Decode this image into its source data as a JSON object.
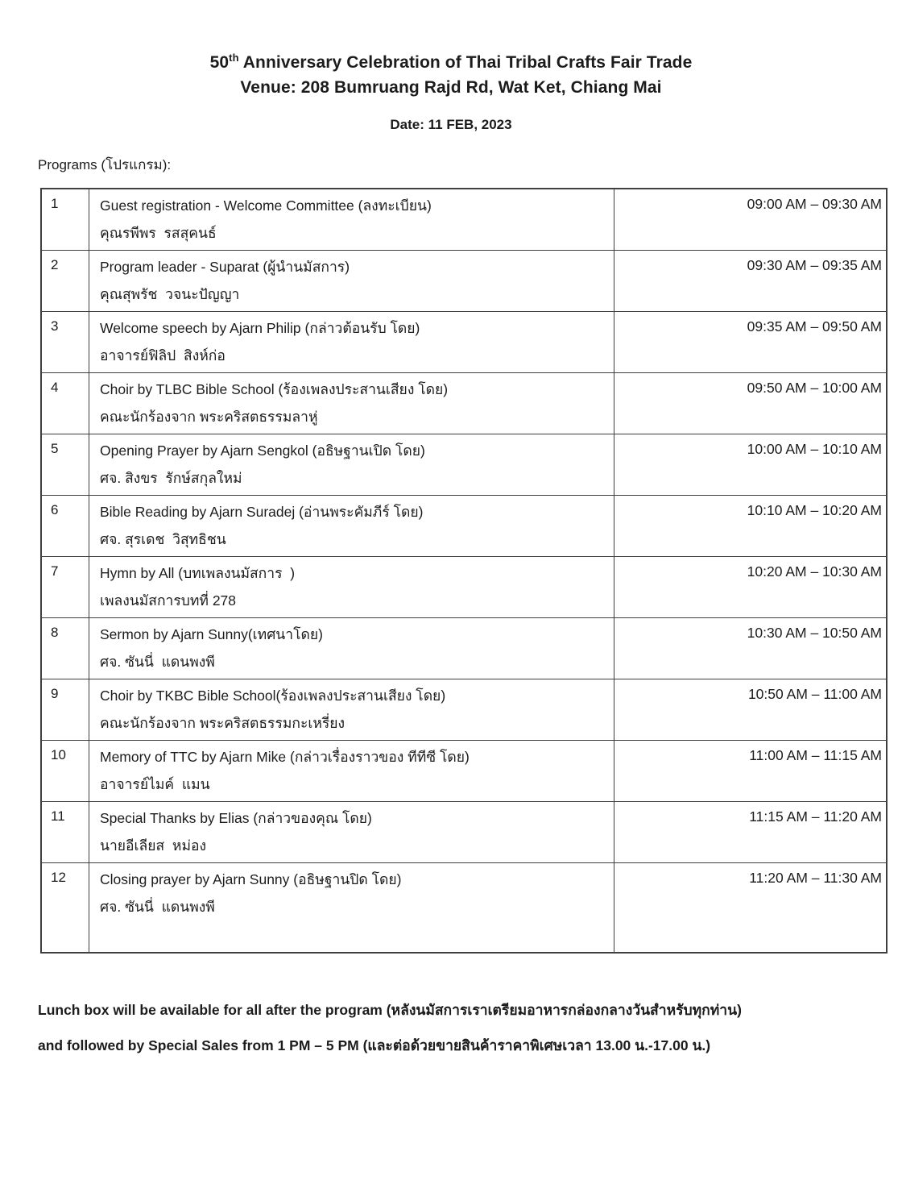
{
  "header": {
    "title_number": "50",
    "title_sup": "th",
    "title_rest": " Anniversary Celebration of Thai Tribal Crafts Fair Trade",
    "venue": "Venue: 208 Bumruang Rajd Rd, Wat Ket, Chiang Mai",
    "date": "Date: 11 FEB, 2023"
  },
  "programs_label": "Programs (โปรแกรม):",
  "table": {
    "rows": [
      {
        "num": "1",
        "line1": "Guest registration - Welcome Committee (ลงทะเบียน)",
        "line2": "คุณรพีพร  รสสุคนธ์",
        "time": "09:00 AM – 09:30 AM"
      },
      {
        "num": "2",
        "line1": "Program leader - Suparat (ผู้นำนมัสการ)",
        "line2": "คุณสุพรัช  วจนะปัญญา",
        "time": "09:30 AM – 09:35 AM"
      },
      {
        "num": "3",
        "line1": "Welcome speech by Ajarn Philip (กล่าวต้อนรับ โดย)",
        "line2": "อาจารย์ฟิลิป  สิงห์ก่อ",
        "time": "09:35 AM – 09:50 AM"
      },
      {
        "num": "4",
        "line1": "Choir by TLBC Bible School (ร้องเพลงประสานเสียง โดย)",
        "line2": "คณะนักร้องจาก พระคริสตธรรมลาหู่",
        "time": "09:50 AM – 10:00 AM"
      },
      {
        "num": "5",
        "line1": "Opening Prayer by Ajarn Sengkol (อธิษฐานเปิด โดย)",
        "line2": "ศจ. สิงขร  รักษ์สกุลใหม่",
        "time": "10:00 AM – 10:10 AM"
      },
      {
        "num": "6",
        "line1": "Bible Reading by Ajarn Suradej (อ่านพระคัมภีร์ โดย)",
        "line2": "ศจ. สุรเดช  วิสุทธิชน",
        "time": "10:10 AM – 10:20 AM"
      },
      {
        "num": "7",
        "line1": "Hymn by All (บทเพลงนมัสการ  )",
        "line2": "เพลงนมัสการบทที่ 278",
        "time": "10:20 AM – 10:30 AM"
      },
      {
        "num": "8",
        "line1": "Sermon by Ajarn Sunny(เทศนาโดย)",
        "line2": "ศจ. ซันนี่  แดนพงพี",
        "time": "10:30 AM – 10:50 AM"
      },
      {
        "num": "9",
        "line1": "Choir by TKBC Bible School(ร้องเพลงประสานเสียง โดย)",
        "line2": "คณะนักร้องจาก พระคริสตธรรมกะเหรี่ยง",
        "time": "10:50 AM – 11:00 AM"
      },
      {
        "num": "10",
        "line1": "Memory of TTC by Ajarn Mike (กล่าวเรื่องราวของ ทีทีซี โดย)",
        "line2": "อาจารย์ไมค์  แมน",
        "time": "11:00 AM – 11:15 AM"
      },
      {
        "num": "11",
        "line1": "Special Thanks by Elias (กล่าวของคุณ โดย)",
        "line2": "นายอีเลียส  หม่อง",
        "time": "11:15 AM – 11:20 AM"
      },
      {
        "num": "12",
        "line1": "Closing prayer by Ajarn Sunny (อธิษฐานปิด โดย)",
        "line2": "ศจ. ซันนี่  แดนพงพี",
        "time": "11:20 AM – 11:30 AM"
      }
    ]
  },
  "footer": {
    "line1": "Lunch box will be available for all after the program (หลังนมัสการเราเตรียมอาหารกล่องกลางวันสำหรับทุกท่าน)",
    "line2": "and followed by Special Sales from 1 PM – 5 PM (และต่อด้วยขายสินค้าราคาพิเศษเวลา 13.00 น.-17.00 น.)"
  },
  "colors": {
    "text": "#1c1c1c",
    "border": "#3f3f3f",
    "background": "#ffffff"
  }
}
